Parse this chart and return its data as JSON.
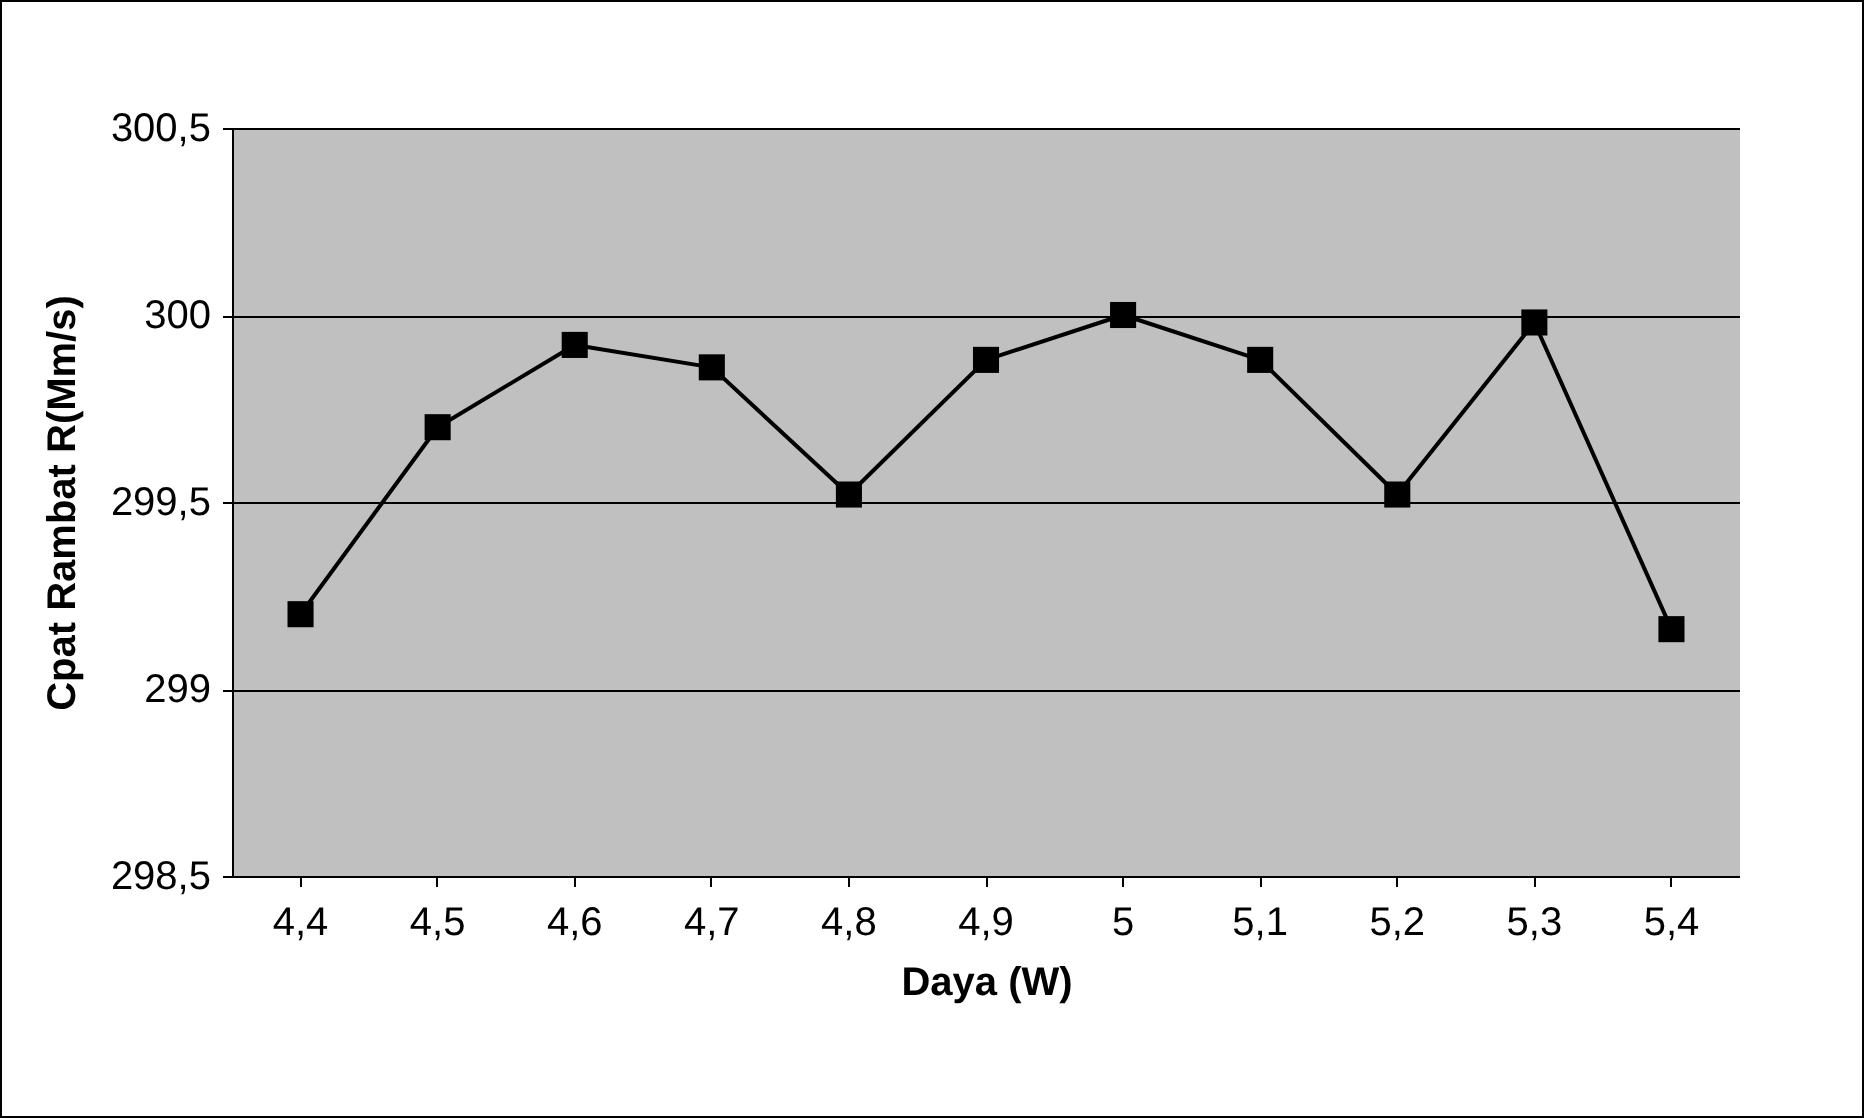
{
  "chart_data": {
    "type": "line",
    "xlabel": "Daya (W)",
    "ylabel": "Cpat Rambat R(Mm/s)",
    "categories": [
      "4,4",
      "4,5",
      "4,6",
      "4,7",
      "4,8",
      "4,9",
      "5",
      "5,1",
      "5,2",
      "5,3",
      "5,4"
    ],
    "series": [
      {
        "color": "#000000",
        "values": [
          299.2,
          299.7,
          299.92,
          299.86,
          299.52,
          299.88,
          300,
          299.88,
          299.52,
          299.98,
          299.16
        ]
      }
    ],
    "ylim": [
      298.5,
      300.5
    ],
    "yticks": [
      {
        "value": 298.5,
        "label": "298,5"
      },
      299,
      {
        "value": 299.5,
        "label": "299,5"
      },
      300,
      {
        "value": 300.5,
        "label": "300,5"
      }
    ],
    "grid": "y",
    "marker": "square",
    "line_style": "solid",
    "legend": false
  }
}
